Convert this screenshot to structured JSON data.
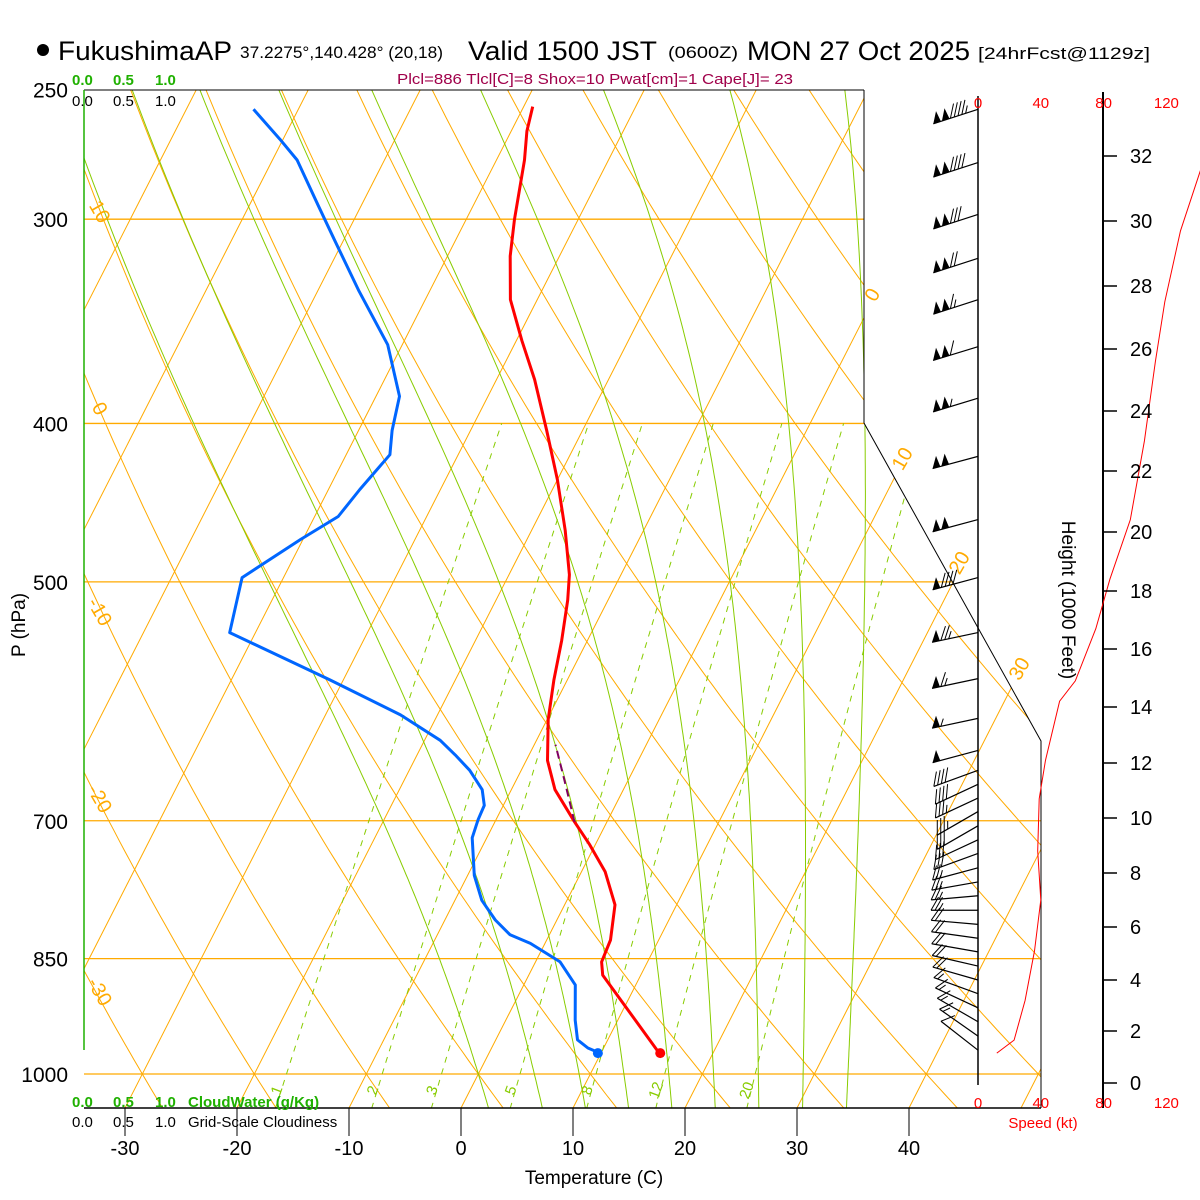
{
  "header": {
    "station": "FukushimaAP",
    "coords": "37.2275°,140.428° (20,18)",
    "valid": "Valid 1500 JST",
    "zulu": "(0600Z)",
    "date": "MON 27 Oct 2025",
    "forecast": "[24hrFcst@1129z]"
  },
  "indices": "Plcl=886 Tlcl[C]=8 Shox=10 Pwat[cm]=1 Cape[J]= 23",
  "cloud_axis": {
    "top_green": [
      "0.0",
      "0.5",
      "1.0"
    ],
    "top_black": [
      "0.0",
      "0.5",
      "1.0"
    ],
    "bottom_green": [
      "0.0",
      "0.5",
      "1.0"
    ],
    "bottom_black": [
      "0.0",
      "0.5",
      "1.0"
    ],
    "cloudwater_label": "CloudWater (g/Kg)",
    "cloudiness_label": "Grid-Scale Cloudiness"
  },
  "chart_data": {
    "type": "skew-t",
    "title": "FukushimaAP Valid 1500 JST (0600Z) MON 27 Oct 2025",
    "xlabel": "Temperature (C)",
    "ylabel": "P (hPa)",
    "pressure_ticks": [
      "250",
      "300",
      "400",
      "500",
      "700",
      "850",
      "1000"
    ],
    "temperature_ticks": [
      "-30",
      "-20",
      "-10",
      "0",
      "10",
      "20",
      "30",
      "40"
    ],
    "isotherm_labels": [
      "0",
      "10",
      "20",
      "30"
    ],
    "dry_adiabat_labels": [
      "10",
      "0",
      "-10",
      "-20",
      "-30"
    ],
    "mixing_ratio_labels": [
      "1",
      "2",
      "3",
      "5",
      "8",
      "12",
      "20"
    ],
    "moist_adiabats_thetaw_c": [
      0,
      5,
      9,
      13,
      17,
      21,
      25,
      29,
      33
    ],
    "temperature_profile": [
      {
        "p": 971,
        "t": 15.2
      },
      {
        "p": 870,
        "t": 6.6
      },
      {
        "p": 854,
        "t": 5.9
      },
      {
        "p": 828,
        "t": 5.7
      },
      {
        "p": 788,
        "t": 4.5
      },
      {
        "p": 752,
        "t": 2.1
      },
      {
        "p": 724,
        "t": -0.5
      },
      {
        "p": 701,
        "t": -2.9
      },
      {
        "p": 670,
        "t": -6.1
      },
      {
        "p": 643,
        "t": -8.1
      },
      {
        "p": 607,
        "t": -9.9
      },
      {
        "p": 574,
        "t": -11.2
      },
      {
        "p": 543,
        "t": -12.3
      },
      {
        "p": 513,
        "t": -13.6
      },
      {
        "p": 495,
        "t": -14.6
      },
      {
        "p": 465,
        "t": -17.0
      },
      {
        "p": 433,
        "t": -20.0
      },
      {
        "p": 404,
        "t": -23.2
      },
      {
        "p": 376,
        "t": -26.6
      },
      {
        "p": 356,
        "t": -29.5
      },
      {
        "p": 336,
        "t": -32.4
      },
      {
        "p": 316,
        "t": -34.4
      },
      {
        "p": 300,
        "t": -35.7
      },
      {
        "p": 276,
        "t": -37.5
      },
      {
        "p": 265,
        "t": -38.6
      },
      {
        "p": 256,
        "t": -39.2
      }
    ],
    "dewpoint_profile": [
      {
        "p": 971,
        "t": 9.9
      },
      {
        "p": 964,
        "t": 8.6
      },
      {
        "p": 953,
        "t": 7.3
      },
      {
        "p": 927,
        "t": 6.2
      },
      {
        "p": 882,
        "t": 4.6
      },
      {
        "p": 854,
        "t": 2.2
      },
      {
        "p": 832,
        "t": -1.3
      },
      {
        "p": 822,
        "t": -3.5
      },
      {
        "p": 805,
        "t": -5.5
      },
      {
        "p": 783,
        "t": -7.6
      },
      {
        "p": 756,
        "t": -9.4
      },
      {
        "p": 717,
        "t": -11.3
      },
      {
        "p": 699,
        "t": -11.6
      },
      {
        "p": 685,
        "t": -11.7
      },
      {
        "p": 670,
        "t": -12.6
      },
      {
        "p": 652,
        "t": -14.6
      },
      {
        "p": 638,
        "t": -16.6
      },
      {
        "p": 625,
        "t": -18.6
      },
      {
        "p": 603,
        "t": -23.3
      },
      {
        "p": 574,
        "t": -31.2
      },
      {
        "p": 537,
        "t": -42.3
      },
      {
        "p": 497,
        "t": -43.7
      },
      {
        "p": 471,
        "t": -40.2
      },
      {
        "p": 456,
        "t": -37.9
      },
      {
        "p": 439,
        "t": -37.2
      },
      {
        "p": 418,
        "t": -36.1
      },
      {
        "p": 404,
        "t": -37.0
      },
      {
        "p": 385,
        "t": -37.9
      },
      {
        "p": 358,
        "t": -41.3
      },
      {
        "p": 332,
        "t": -46.3
      },
      {
        "p": 309,
        "t": -50.8
      },
      {
        "p": 294,
        "t": -53.9
      },
      {
        "p": 276,
        "t": -57.8
      },
      {
        "p": 268,
        "t": -60.3
      },
      {
        "p": 257,
        "t": -64.0
      }
    ],
    "parcel_path": [
      {
        "p": 701,
        "t": -2.9
      },
      {
        "p": 661,
        "t": -5.7
      },
      {
        "p": 629,
        "t": -8.1
      }
    ],
    "surface": {
      "p": 971,
      "t": 15.2,
      "td": 9.9
    },
    "wind_barbs": [
      {
        "p": 257,
        "spd": 145,
        "dir": 252
      },
      {
        "p": 277,
        "spd": 140,
        "dir": 252
      },
      {
        "p": 298,
        "spd": 130,
        "dir": 252
      },
      {
        "p": 317,
        "spd": 120,
        "dir": 252
      },
      {
        "p": 336,
        "spd": 115,
        "dir": 252
      },
      {
        "p": 359,
        "spd": 110,
        "dir": 253
      },
      {
        "p": 386,
        "spd": 105,
        "dir": 253
      },
      {
        "p": 419,
        "spd": 100,
        "dir": 255
      },
      {
        "p": 458,
        "spd": 100,
        "dir": 255
      },
      {
        "p": 497,
        "spd": 90,
        "dir": 255
      },
      {
        "p": 537,
        "spd": 75,
        "dir": 258
      },
      {
        "p": 573,
        "spd": 65,
        "dir": 258
      },
      {
        "p": 606,
        "spd": 55,
        "dir": 258
      },
      {
        "p": 634,
        "spd": 50,
        "dir": 255
      },
      {
        "p": 652,
        "spd": 40,
        "dir": 250
      },
      {
        "p": 665,
        "spd": 40,
        "dir": 245
      },
      {
        "p": 678,
        "spd": 35,
        "dir": 245
      },
      {
        "p": 691,
        "spd": 35,
        "dir": 240
      },
      {
        "p": 705,
        "spd": 30,
        "dir": 240
      },
      {
        "p": 719,
        "spd": 30,
        "dir": 245
      },
      {
        "p": 733,
        "spd": 30,
        "dir": 250
      },
      {
        "p": 748,
        "spd": 25,
        "dir": 255
      },
      {
        "p": 763,
        "spd": 25,
        "dir": 260
      },
      {
        "p": 778,
        "spd": 25,
        "dir": 265
      },
      {
        "p": 794,
        "spd": 25,
        "dir": 270
      },
      {
        "p": 810,
        "spd": 20,
        "dir": 275
      },
      {
        "p": 826,
        "spd": 20,
        "dir": 278
      },
      {
        "p": 842,
        "spd": 20,
        "dir": 280
      },
      {
        "p": 859,
        "spd": 20,
        "dir": 283
      },
      {
        "p": 876,
        "spd": 20,
        "dir": 286
      },
      {
        "p": 893,
        "spd": 15,
        "dir": 290
      },
      {
        "p": 911,
        "spd": 15,
        "dir": 295
      },
      {
        "p": 929,
        "spd": 15,
        "dir": 300
      },
      {
        "p": 948,
        "spd": 15,
        "dir": 305
      },
      {
        "p": 967,
        "spd": 10,
        "dir": 308
      }
    ],
    "wind_speed_profile": [
      {
        "h": 1.15,
        "spd": 12
      },
      {
        "h": 1.65,
        "spd": 23
      },
      {
        "h": 3.2,
        "spd": 30
      },
      {
        "h": 5.1,
        "spd": 36
      },
      {
        "h": 7.0,
        "spd": 40
      },
      {
        "h": 8.8,
        "spd": 38
      },
      {
        "h": 10.7,
        "spd": 39
      },
      {
        "h": 12.1,
        "spd": 43
      },
      {
        "h": 14.2,
        "spd": 52
      },
      {
        "h": 14.9,
        "spd": 62
      },
      {
        "h": 16.7,
        "spd": 75
      },
      {
        "h": 18.4,
        "spd": 84
      },
      {
        "h": 20.4,
        "spd": 97
      },
      {
        "h": 23.0,
        "spd": 106
      },
      {
        "h": 25.6,
        "spd": 113
      },
      {
        "h": 27.5,
        "spd": 119
      },
      {
        "h": 29.7,
        "spd": 129
      },
      {
        "h": 31.6,
        "spd": 142
      }
    ],
    "height_axis": {
      "label": "Height (1000 Feet)",
      "ticks": [
        "0",
        "2",
        "4",
        "6",
        "8",
        "10",
        "12",
        "14",
        "16",
        "18",
        "20",
        "22",
        "24",
        "26",
        "28",
        "30",
        "32"
      ]
    },
    "speed_axis": {
      "label": "Speed (kt)",
      "ticks": [
        "0",
        "40",
        "80",
        "120"
      ]
    },
    "colors": {
      "temperature": "#ff0000",
      "dewpoint": "#0066ff",
      "parcel": "#800060",
      "isotherm": "#ffaa00",
      "moist": "#88cc00",
      "speed": "#ff0000"
    }
  }
}
